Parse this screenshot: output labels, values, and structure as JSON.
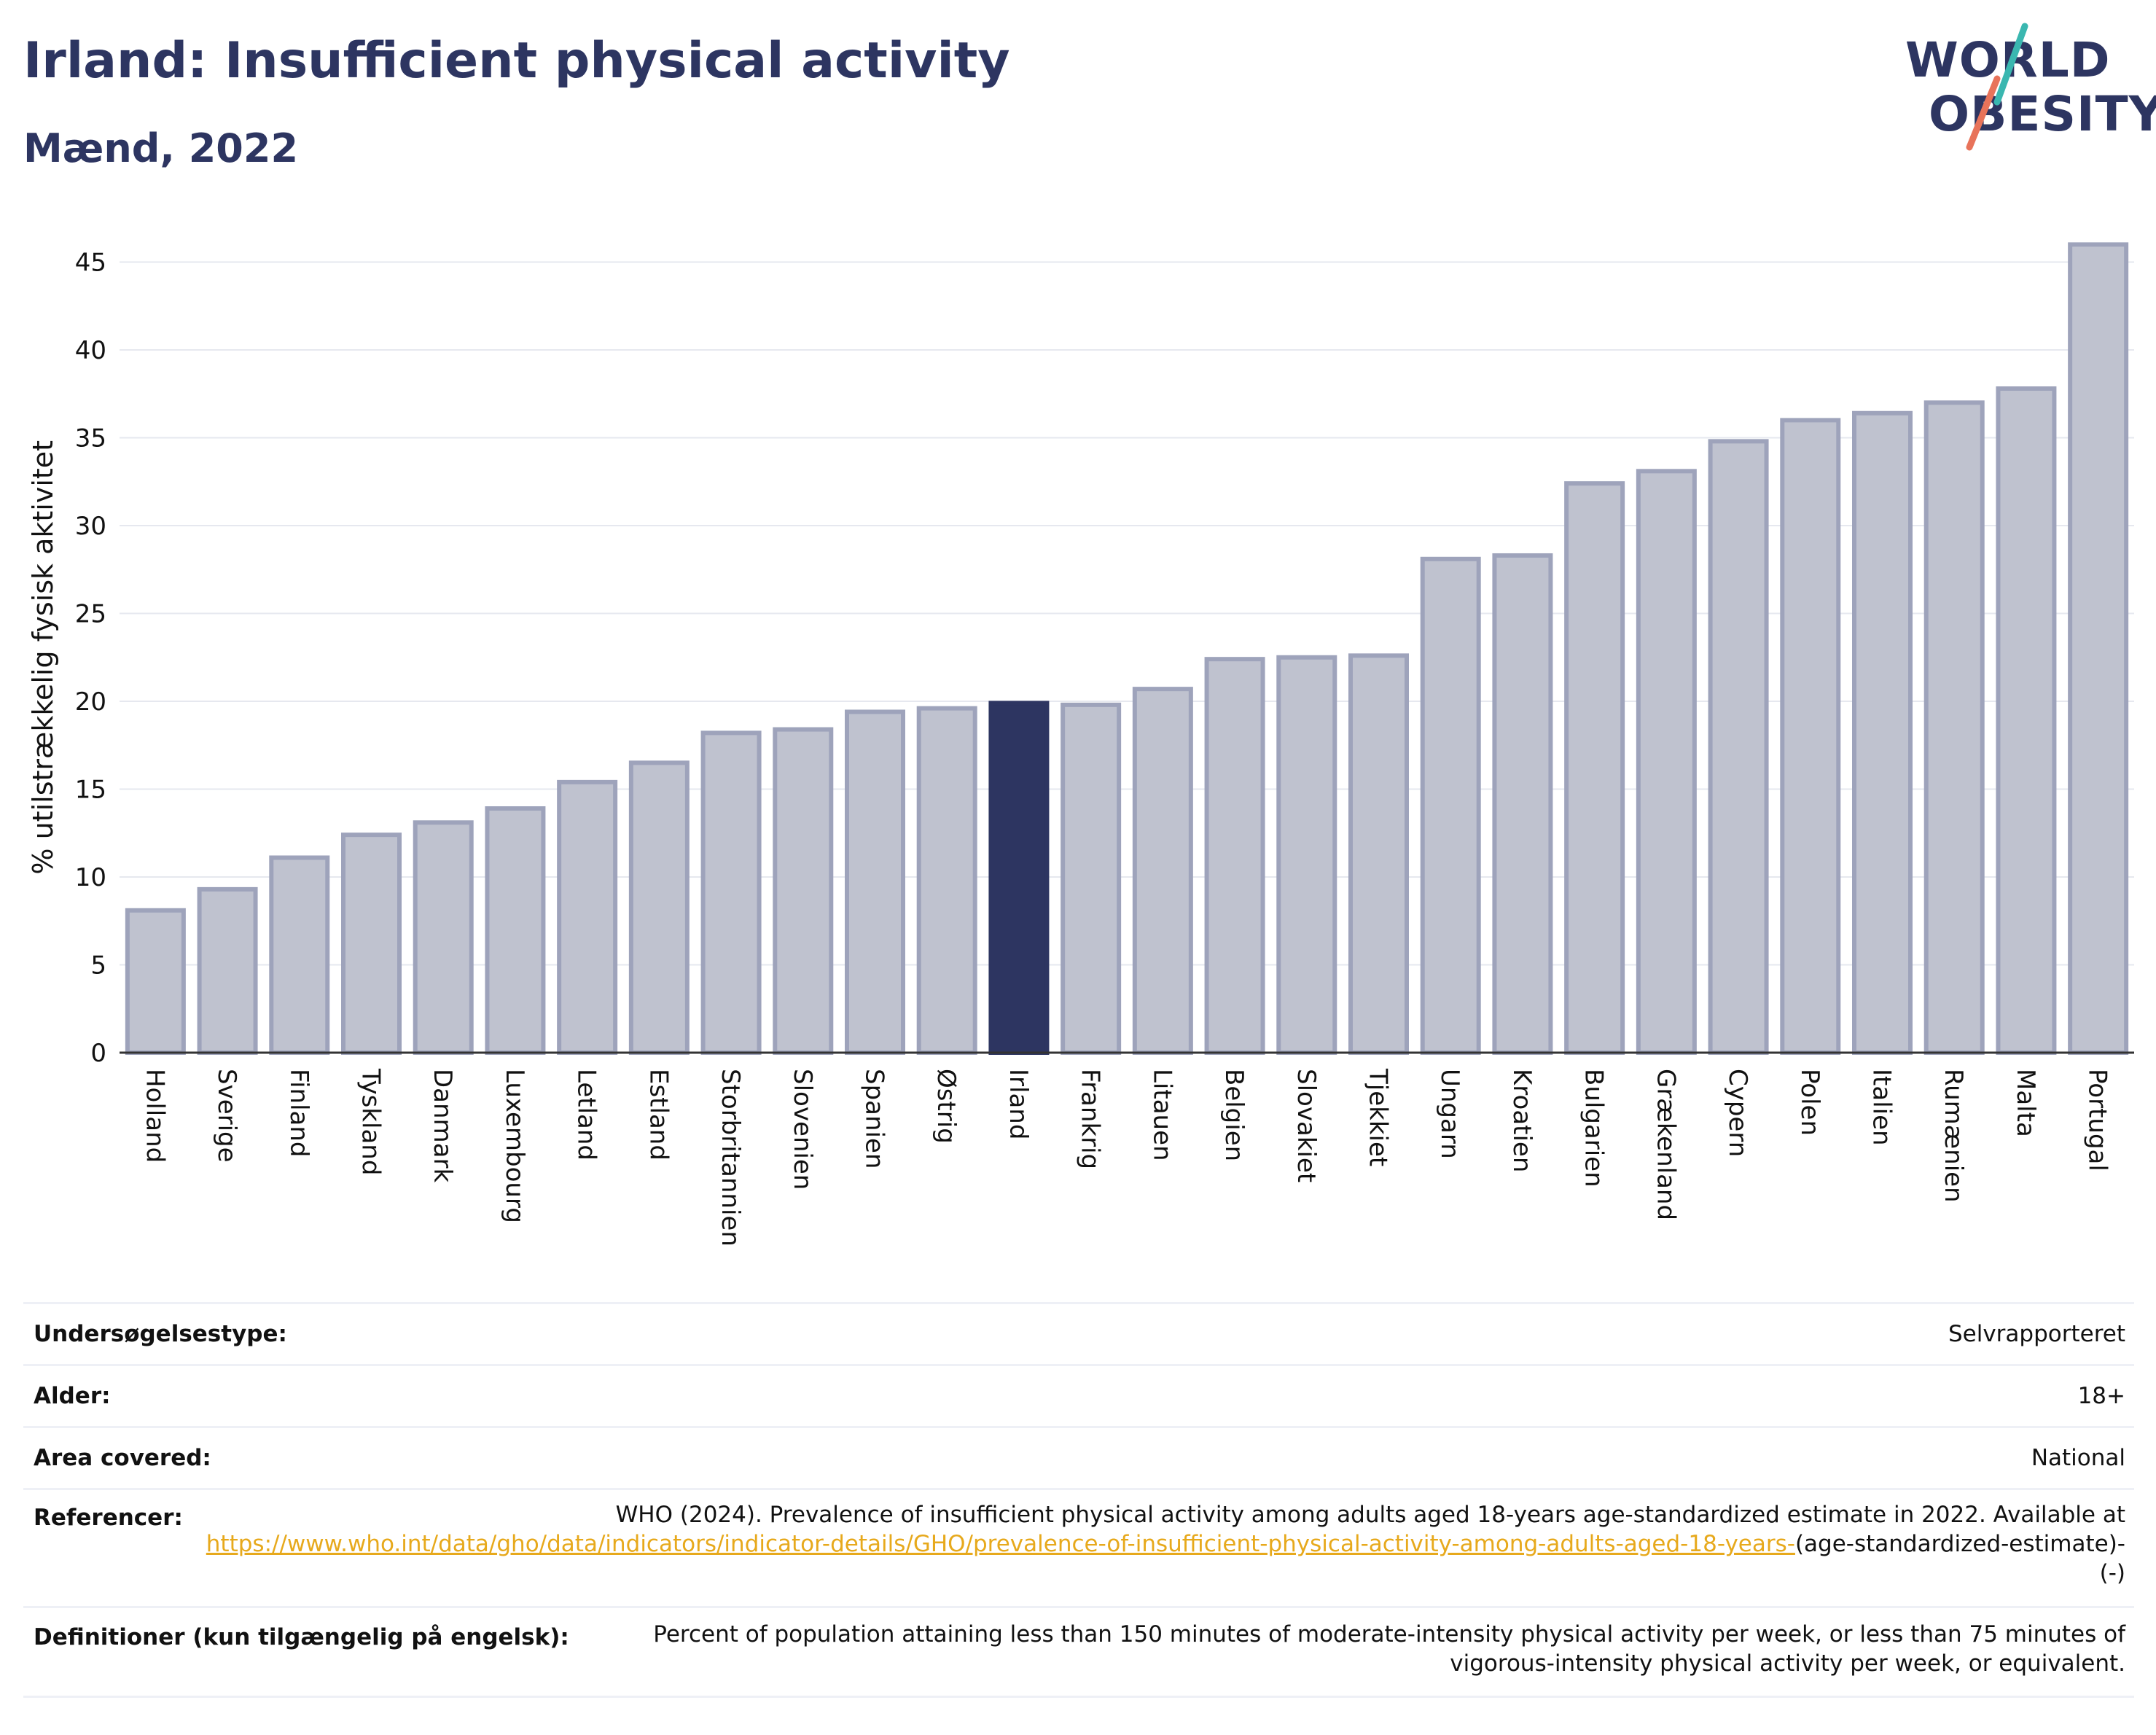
{
  "header": {
    "title": "Irland: Insufficient physical activity",
    "subtitle": "Mænd, 2022"
  },
  "logo": {
    "line1": "WORLD",
    "line2": "OBESITY",
    "slash_colors": [
      "#3ab7b0",
      "#e8735a"
    ]
  },
  "colors": {
    "bar": "#bfc2cf",
    "bar_stroke": "#9ea3bb",
    "highlight": "#2d3561",
    "axis_text": "#111111",
    "grid": "#e6e8ef"
  },
  "chart_data": {
    "type": "bar",
    "ylabel": "% utilstrækkelig fysisk aktivitet",
    "ylim": [
      0,
      47
    ],
    "yticks": [
      0,
      5,
      10,
      15,
      20,
      25,
      30,
      35,
      40,
      45
    ],
    "grid": true,
    "highlight": "Irland",
    "categories": [
      "Holland",
      "Sverige",
      "Finland",
      "Tyskland",
      "Danmark",
      "Luxembourg",
      "Letland",
      "Estland",
      "Storbritannien",
      "Slovenien",
      "Spanien",
      "Østrig",
      "Irland",
      "Frankrig",
      "Litauen",
      "Belgien",
      "Slovakiet",
      "Tjekkiet",
      "Ungarn",
      "Kroatien",
      "Bulgarien",
      "Grækenland",
      "Cypern",
      "Polen",
      "Italien",
      "Rumænien",
      "Malta",
      "Portugal"
    ],
    "values": [
      8.1,
      9.3,
      11.1,
      12.4,
      13.1,
      13.9,
      15.4,
      16.5,
      18.2,
      18.4,
      19.4,
      19.6,
      19.9,
      19.8,
      20.7,
      22.4,
      22.5,
      22.6,
      28.1,
      28.3,
      32.4,
      33.1,
      34.8,
      36.0,
      36.4,
      37.0,
      37.8,
      46.0
    ]
  },
  "info": {
    "survey_type_label": "Undersøgelsestype:",
    "survey_type_value": "Selvrapporteret",
    "age_label": "Alder:",
    "age_value": "18+",
    "area_label": "Area covered:",
    "area_value": "National",
    "refs_label": "Referencer:",
    "refs_text": "WHO (2024). Prevalence of insufficient physical activity among adults aged 18-years age-standardized estimate in 2022. Available at",
    "refs_link": "https://www.who.int/data/gho/data/indicators/indicator-details/GHO/prevalence-of-insufficient-physical-activity-among-adults-aged-18-years-",
    "refs_tail": "(age-standardized-estimate)-(-)",
    "def_label": "Definitioner (kun tilgængelig på engelsk):",
    "def_text": "Percent of population attaining less than 150 minutes of moderate-intensity physical activity per week, or less than 75 minutes of vigorous-intensity physical activity per week, or equivalent."
  }
}
